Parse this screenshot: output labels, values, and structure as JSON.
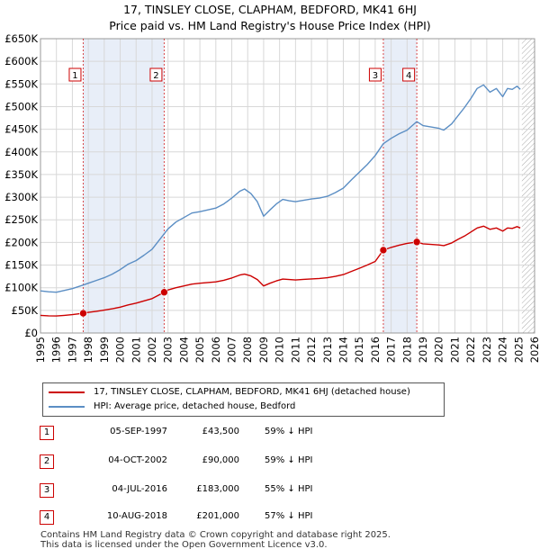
{
  "title_line1": "17, TINSLEY CLOSE, CLAPHAM, BEDFORD, MK41 6HJ",
  "title_line2": "Price paid vs. HM Land Registry's House Price Index (HPI)",
  "colors": {
    "price_paid": "#cc0000",
    "hpi": "#5b8ec4",
    "shade": "#e8eef8",
    "grid": "#d8d8d8",
    "marker_border": "#cc0000",
    "hatch": "#aaaaaa"
  },
  "chart_data": {
    "type": "line",
    "title": "Price paid vs. HM Land Registry's House Price Index (HPI)",
    "xlim": [
      1995,
      2026
    ],
    "ylim": [
      0,
      650000
    ],
    "y_ticks": [
      0,
      50000,
      100000,
      150000,
      200000,
      250000,
      300000,
      350000,
      400000,
      450000,
      500000,
      550000,
      600000,
      650000
    ],
    "y_tick_labels": [
      "£0",
      "£50K",
      "£100K",
      "£150K",
      "£200K",
      "£250K",
      "£300K",
      "£350K",
      "£400K",
      "£450K",
      "£500K",
      "£550K",
      "£600K",
      "£650K"
    ],
    "x_ticks": [
      1995,
      1996,
      1997,
      1998,
      1999,
      2000,
      2001,
      2002,
      2003,
      2004,
      2005,
      2006,
      2007,
      2008,
      2009,
      2010,
      2011,
      2012,
      2013,
      2014,
      2015,
      2016,
      2017,
      2018,
      2019,
      2020,
      2021,
      2022,
      2023,
      2024,
      2025,
      2026
    ],
    "x_tick_labels": [
      "1995",
      "1996",
      "1997",
      "1998",
      "1999",
      "2000",
      "2001",
      "2002",
      "2003",
      "2004",
      "2005",
      "2006",
      "2007",
      "2008",
      "2009",
      "2010",
      "2011",
      "2012",
      "2013",
      "2014",
      "2015",
      "2016",
      "2017",
      "2018",
      "2019",
      "2020",
      "2021",
      "2022",
      "2023",
      "2024",
      "2025",
      "2026"
    ],
    "shaded_periods": [
      [
        1997.68,
        2002.76
      ],
      [
        2016.51,
        2018.61
      ]
    ],
    "forecast_start": 2025.2,
    "series": [
      {
        "name": "HPI: Average price, detached house, Bedford",
        "color": "#5b8ec4",
        "points": [
          [
            1995.0,
            93000
          ],
          [
            1995.5,
            91000
          ],
          [
            1996.0,
            90000
          ],
          [
            1996.5,
            94000
          ],
          [
            1997.0,
            98000
          ],
          [
            1997.68,
            106000
          ],
          [
            1998.0,
            110000
          ],
          [
            1998.5,
            116000
          ],
          [
            1999.0,
            122000
          ],
          [
            1999.5,
            130000
          ],
          [
            2000.0,
            140000
          ],
          [
            2000.5,
            152000
          ],
          [
            2001.0,
            160000
          ],
          [
            2001.5,
            172000
          ],
          [
            2002.0,
            185000
          ],
          [
            2002.76,
            219000
          ],
          [
            2003.0,
            230000
          ],
          [
            2003.5,
            245000
          ],
          [
            2004.0,
            255000
          ],
          [
            2004.5,
            265000
          ],
          [
            2005.0,
            268000
          ],
          [
            2005.5,
            272000
          ],
          [
            2006.0,
            276000
          ],
          [
            2006.5,
            285000
          ],
          [
            2007.0,
            298000
          ],
          [
            2007.5,
            313000
          ],
          [
            2007.8,
            318000
          ],
          [
            2008.2,
            308000
          ],
          [
            2008.6,
            290000
          ],
          [
            2009.0,
            258000
          ],
          [
            2009.4,
            272000
          ],
          [
            2009.8,
            285000
          ],
          [
            2010.2,
            295000
          ],
          [
            2010.6,
            292000
          ],
          [
            2011.0,
            290000
          ],
          [
            2011.5,
            293000
          ],
          [
            2012.0,
            296000
          ],
          [
            2012.5,
            298000
          ],
          [
            2013.0,
            302000
          ],
          [
            2013.5,
            310000
          ],
          [
            2014.0,
            320000
          ],
          [
            2014.5,
            338000
          ],
          [
            2015.0,
            355000
          ],
          [
            2015.5,
            372000
          ],
          [
            2016.0,
            392000
          ],
          [
            2016.51,
            418000
          ],
          [
            2017.0,
            430000
          ],
          [
            2017.5,
            440000
          ],
          [
            2018.0,
            448000
          ],
          [
            2018.61,
            467000
          ],
          [
            2019.0,
            458000
          ],
          [
            2019.5,
            455000
          ],
          [
            2020.0,
            452000
          ],
          [
            2020.3,
            448000
          ],
          [
            2020.8,
            462000
          ],
          [
            2021.2,
            480000
          ],
          [
            2021.6,
            498000
          ],
          [
            2022.0,
            518000
          ],
          [
            2022.4,
            540000
          ],
          [
            2022.8,
            548000
          ],
          [
            2023.2,
            532000
          ],
          [
            2023.6,
            540000
          ],
          [
            2024.0,
            522000
          ],
          [
            2024.3,
            540000
          ],
          [
            2024.6,
            538000
          ],
          [
            2024.9,
            545000
          ],
          [
            2025.1,
            538000
          ]
        ]
      },
      {
        "name": "17, TINSLEY CLOSE, CLAPHAM, BEDFORD, MK41 6HJ (detached house)",
        "color": "#cc0000",
        "points": [
          [
            1995.0,
            39000
          ],
          [
            1995.5,
            38000
          ],
          [
            1996.0,
            37500
          ],
          [
            1996.5,
            39000
          ],
          [
            1997.0,
            40500
          ],
          [
            1997.68,
            43500
          ],
          [
            1998.0,
            45500
          ],
          [
            1998.5,
            48000
          ],
          [
            1999.0,
            50500
          ],
          [
            1999.5,
            53500
          ],
          [
            2000.0,
            57000
          ],
          [
            2000.5,
            62000
          ],
          [
            2001.0,
            66000
          ],
          [
            2001.5,
            71000
          ],
          [
            2002.0,
            76000
          ],
          [
            2002.76,
            90000
          ],
          [
            2003.0,
            95000
          ],
          [
            2003.5,
            100000
          ],
          [
            2004.0,
            104000
          ],
          [
            2004.5,
            108000
          ],
          [
            2005.0,
            110000
          ],
          [
            2005.5,
            111500
          ],
          [
            2006.0,
            113000
          ],
          [
            2006.5,
            116500
          ],
          [
            2007.0,
            121500
          ],
          [
            2007.5,
            128000
          ],
          [
            2007.8,
            130000
          ],
          [
            2008.2,
            126000
          ],
          [
            2008.6,
            118000
          ],
          [
            2009.0,
            104000
          ],
          [
            2009.4,
            110000
          ],
          [
            2009.8,
            115000
          ],
          [
            2010.2,
            119000
          ],
          [
            2010.6,
            118000
          ],
          [
            2011.0,
            117000
          ],
          [
            2011.5,
            118500
          ],
          [
            2012.0,
            119500
          ],
          [
            2012.5,
            120500
          ],
          [
            2013.0,
            122000
          ],
          [
            2013.5,
            125000
          ],
          [
            2014.0,
            129000
          ],
          [
            2014.5,
            136000
          ],
          [
            2015.0,
            143000
          ],
          [
            2015.5,
            150000
          ],
          [
            2016.0,
            158000
          ],
          [
            2016.51,
            183000
          ],
          [
            2017.0,
            189000
          ],
          [
            2017.5,
            194000
          ],
          [
            2018.0,
            198000
          ],
          [
            2018.61,
            201000
          ],
          [
            2019.0,
            197000
          ],
          [
            2019.5,
            195500
          ],
          [
            2020.0,
            194500
          ],
          [
            2020.3,
            193000
          ],
          [
            2020.8,
            199000
          ],
          [
            2021.2,
            207000
          ],
          [
            2021.6,
            214000
          ],
          [
            2022.0,
            223000
          ],
          [
            2022.4,
            232000
          ],
          [
            2022.8,
            236000
          ],
          [
            2023.2,
            229000
          ],
          [
            2023.6,
            232000
          ],
          [
            2024.0,
            225000
          ],
          [
            2024.3,
            232000
          ],
          [
            2024.6,
            231000
          ],
          [
            2024.9,
            235000
          ],
          [
            2025.1,
            232000
          ]
        ]
      }
    ],
    "sales": [
      {
        "label": "1",
        "x": 1997.68,
        "value": 43500
      },
      {
        "label": "2",
        "x": 2002.76,
        "value": 90000
      },
      {
        "label": "3",
        "x": 2016.51,
        "value": 183000
      },
      {
        "label": "4",
        "x": 2018.61,
        "value": 201000
      }
    ]
  },
  "legend": {
    "price_paid_label": "17, TINSLEY CLOSE, CLAPHAM, BEDFORD, MK41 6HJ (detached house)",
    "hpi_label": "HPI: Average price, detached house, Bedford"
  },
  "transactions": [
    {
      "num": "1",
      "date": "05-SEP-1997",
      "price": "£43,500",
      "hpi": "59% ↓ HPI"
    },
    {
      "num": "2",
      "date": "04-OCT-2002",
      "price": "£90,000",
      "hpi": "59% ↓ HPI"
    },
    {
      "num": "3",
      "date": "04-JUL-2016",
      "price": "£183,000",
      "hpi": "55% ↓ HPI"
    },
    {
      "num": "4",
      "date": "10-AUG-2018",
      "price": "£201,000",
      "hpi": "57% ↓ HPI"
    }
  ],
  "footer_line1": "Contains HM Land Registry data © Crown copyright and database right 2025.",
  "footer_line2": "This data is licensed under the Open Government Licence v3.0."
}
